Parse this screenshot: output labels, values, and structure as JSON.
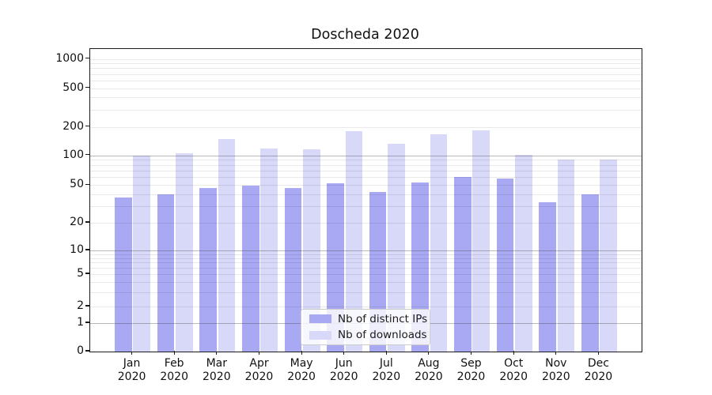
{
  "chart_data": {
    "type": "bar",
    "title": "Doscheda 2020",
    "categories": [
      "Jan\n2020",
      "Feb\n2020",
      "Mar\n2020",
      "Apr\n2020",
      "May\n2020",
      "Jun\n2020",
      "Jul\n2020",
      "Aug\n2020",
      "Sep\n2020",
      "Oct\n2020",
      "Nov\n2020",
      "Dec\n2020"
    ],
    "series": [
      {
        "name": "Nb of distinct IPs",
        "color": "#a8a8f3",
        "values": [
          37,
          40,
          47,
          49,
          47,
          52,
          42,
          53,
          60,
          58,
          33,
          40
        ]
      },
      {
        "name": "Nb of downloads",
        "color": "#d8d8f8",
        "values": [
          100,
          105,
          150,
          119,
          116,
          180,
          132,
          168,
          183,
          102,
          90,
          90
        ]
      }
    ],
    "xlabel": "",
    "ylabel": "",
    "yscale": "symlog",
    "y_tick_labels": [
      "0",
      "1",
      "2",
      "5",
      "10",
      "20",
      "50",
      "100",
      "200",
      "500",
      "1000"
    ],
    "ylim": [
      0,
      1300
    ],
    "grid": "both",
    "legend": {
      "position": "lower center",
      "labels": [
        "Nb of distinct IPs",
        "Nb of downloads"
      ]
    },
    "colors": {
      "bar_distinct_ips": "#a8a8f3",
      "bar_downloads": "#d8d8f8",
      "grid_major": "#b5b5b5",
      "grid_minor": "#e8e8e8",
      "spine": "#1a1a1a",
      "text": "#111111"
    }
  }
}
